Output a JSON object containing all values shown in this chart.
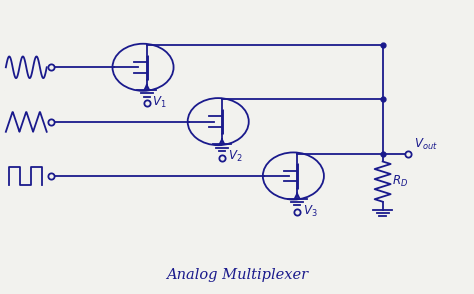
{
  "title": "Analog Multiplexer",
  "color": "#1a1a8c",
  "bg_color": "#f2f2ee",
  "fig_width": 4.74,
  "fig_height": 2.94,
  "dpi": 100,
  "xlim": [
    0,
    10
  ],
  "ylim": [
    0,
    8
  ]
}
